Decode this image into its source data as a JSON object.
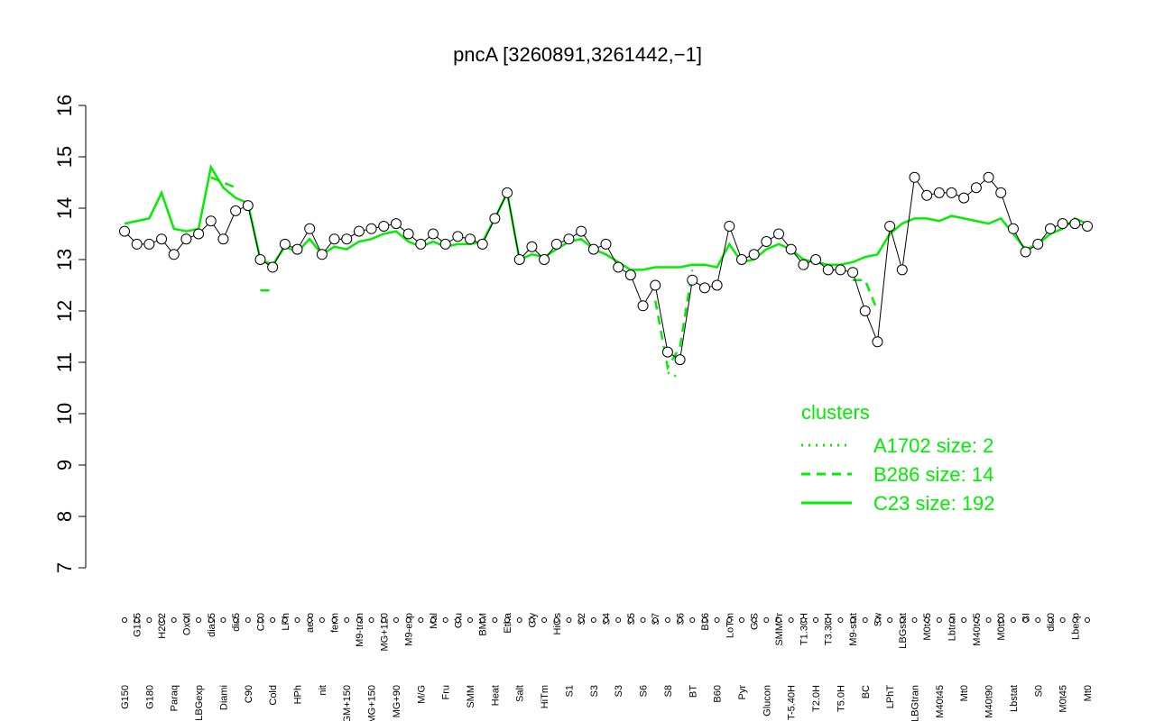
{
  "chart_data": {
    "type": "line",
    "title": "pncA [3260891,3261442,−1]",
    "categories": [
      "G150",
      "G135",
      "G180",
      "H2O2",
      "Paraq",
      "Oxctl",
      "LBGexp",
      "dia15",
      "Diami",
      "dia5",
      "C90",
      "C30",
      "Cold",
      "LPh",
      "HPh",
      "aero",
      "nit",
      "ferm",
      "GM+150",
      "M9-tran",
      "MG+150",
      "MG+120",
      "MG+90",
      "M9-exp",
      "M/G",
      "Mal",
      "Fru",
      "Glu",
      "SMM",
      "BMM",
      "Heat",
      "Etha",
      "Salt",
      "Gly",
      "HiTm",
      "HiOs",
      "S1",
      "S2",
      "S3",
      "S4",
      "S3",
      "S5",
      "S6",
      "S7",
      "S8",
      "S6",
      "BT",
      "B36",
      "B60",
      "LoTm",
      "Pyr",
      "G/S",
      "Glucon",
      "SMMPr",
      "T-5.40H",
      "T1.30H",
      "T2.0H",
      "T3.30H",
      "T5.0H",
      "M9-stat",
      "BC",
      "Sw",
      "LPhT",
      "LBGstat",
      "LBGtran",
      "M0t45",
      "M40t45",
      "Lbtran",
      "Mt0",
      "M40t45",
      "M40t90",
      "M0t90",
      "Lbstat",
      "BI",
      "S0",
      "dia0",
      "M0t45",
      "Lbexp",
      "Mt0"
    ],
    "values": [
      13.55,
      13.3,
      13.3,
      13.4,
      13.1,
      13.4,
      13.5,
      13.75,
      13.4,
      13.95,
      14.05,
      13.0,
      12.85,
      13.3,
      13.2,
      13.6,
      13.1,
      13.4,
      13.4,
      13.55,
      13.6,
      13.65,
      13.7,
      13.5,
      13.3,
      13.5,
      13.3,
      13.45,
      13.4,
      13.3,
      13.8,
      14.3,
      13.0,
      13.25,
      13.0,
      13.3,
      13.4,
      13.55,
      13.2,
      13.3,
      12.85,
      12.7,
      12.1,
      12.5,
      11.2,
      11.05,
      12.6,
      12.45,
      12.5,
      13.65,
      13.0,
      13.1,
      13.35,
      13.5,
      13.2,
      12.9,
      13.0,
      12.8,
      12.8,
      12.75,
      12.0,
      11.4,
      13.65,
      12.8,
      14.6,
      14.25,
      14.3,
      14.3,
      14.2,
      14.4,
      14.6,
      14.3,
      13.6,
      13.15,
      13.3,
      13.6,
      13.7,
      13.7,
      13.65
    ],
    "point_color": "#000000",
    "point_fill": "#ffffff",
    "series": [
      {
        "name": "A1702 size: 2",
        "color": "#00ee00",
        "dash": "dotted",
        "values": [
          null,
          null,
          null,
          null,
          null,
          null,
          null,
          null,
          null,
          null,
          null,
          null,
          null,
          null,
          null,
          null,
          null,
          null,
          null,
          null,
          null,
          null,
          null,
          null,
          null,
          null,
          null,
          null,
          null,
          null,
          null,
          null,
          null,
          null,
          null,
          null,
          null,
          null,
          null,
          null,
          null,
          null,
          null,
          null,
          10.8,
          10.7,
          null,
          null,
          null,
          null,
          null,
          null,
          null,
          null,
          null,
          null,
          null,
          null,
          null,
          null,
          null,
          null,
          null,
          null,
          null,
          null,
          null,
          null,
          null,
          null,
          null,
          null,
          null,
          null,
          null,
          null,
          null,
          null,
          null
        ]
      },
      {
        "name": "B286 size: 14",
        "color": "#00ee00",
        "dash": "dashed",
        "values": [
          null,
          null,
          null,
          null,
          null,
          null,
          null,
          14.6,
          14.5,
          14.4,
          null,
          12.4,
          12.4,
          null,
          null,
          null,
          null,
          null,
          null,
          null,
          null,
          null,
          null,
          null,
          null,
          null,
          null,
          null,
          null,
          null,
          null,
          null,
          null,
          null,
          null,
          null,
          null,
          null,
          null,
          null,
          null,
          null,
          null,
          12.2,
          10.9,
          11.3,
          12.8,
          null,
          null,
          null,
          null,
          null,
          null,
          null,
          null,
          null,
          null,
          null,
          null,
          12.6,
          12.6,
          12.0,
          null,
          null,
          null,
          null,
          null,
          null,
          null,
          null,
          null,
          null,
          null,
          null,
          null,
          null,
          null,
          null,
          null
        ]
      },
      {
        "name": "C23 size: 192",
        "color": "#00ee00",
        "dash": "solid",
        "values": [
          13.7,
          13.75,
          13.8,
          14.3,
          13.6,
          13.55,
          13.6,
          14.8,
          14.4,
          14.2,
          14.1,
          13.0,
          12.9,
          13.25,
          13.15,
          13.4,
          13.1,
          13.25,
          13.2,
          13.35,
          13.4,
          13.5,
          13.55,
          13.35,
          13.25,
          13.35,
          13.25,
          13.3,
          13.3,
          13.35,
          13.8,
          14.3,
          13.0,
          13.1,
          13.05,
          13.2,
          13.35,
          13.4,
          13.2,
          13.1,
          12.95,
          12.8,
          12.8,
          12.85,
          12.85,
          12.85,
          12.9,
          12.9,
          12.85,
          13.3,
          12.95,
          13.0,
          13.2,
          13.3,
          13.2,
          13.0,
          12.95,
          12.9,
          12.9,
          12.95,
          13.05,
          13.1,
          13.5,
          13.7,
          13.8,
          13.8,
          13.75,
          13.85,
          13.8,
          13.75,
          13.7,
          13.8,
          13.5,
          13.2,
          13.3,
          13.5,
          13.6,
          13.8,
          13.7
        ]
      }
    ],
    "legend_title": "clusters",
    "legend": "right",
    "ylim": [
      7,
      16
    ],
    "yticks": [
      7,
      8,
      9,
      10,
      11,
      12,
      13,
      14,
      15,
      16
    ]
  }
}
